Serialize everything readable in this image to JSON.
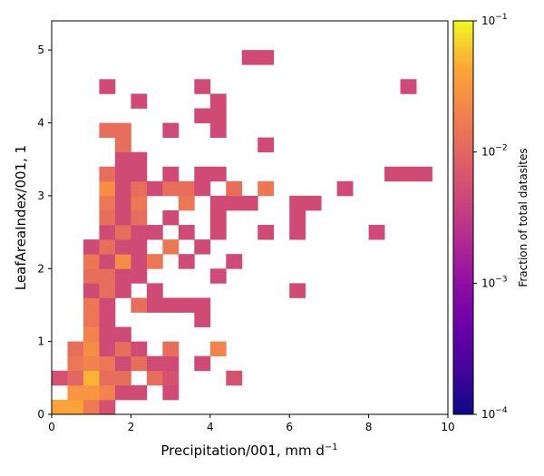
{
  "chart_data": {
    "type": "heatmap",
    "xlabel": "Precipitation/001,  mm d",
    "xlabel_sup": "−1",
    "ylabel": "LeafAreaIndex/001,  1",
    "xlim": [
      0,
      10
    ],
    "ylim": [
      0,
      5.4
    ],
    "bin_width_x": 0.4,
    "bin_height_y": 0.2,
    "xticks": [
      "0",
      "2",
      "4",
      "6",
      "8",
      "10"
    ],
    "yticks": [
      "0",
      "1",
      "2",
      "3",
      "4",
      "5"
    ],
    "colorbar": {
      "label": "Fraction of total datasites",
      "scale": "log",
      "range": [
        0.0001,
        0.1
      ],
      "colormap": "plasma",
      "ticks": [
        {
          "base": "10",
          "exp": "−1",
          "value": 0.1
        },
        {
          "base": "10",
          "exp": "−2",
          "value": 0.01
        },
        {
          "base": "10",
          "exp": "−3",
          "value": 0.001
        },
        {
          "base": "10",
          "exp": "−4",
          "value": 0.0001
        }
      ]
    },
    "cells": [
      {
        "x": 0.0,
        "y": 0.0,
        "v": 0.04
      },
      {
        "x": 0.4,
        "y": 0.0,
        "v": 0.04
      },
      {
        "x": 0.8,
        "y": 0.0,
        "v": 0.016
      },
      {
        "x": 1.2,
        "y": 0.0,
        "v": 0.006
      },
      {
        "x": 0.4,
        "y": 0.2,
        "v": 0.03
      },
      {
        "x": 0.8,
        "y": 0.2,
        "v": 0.03
      },
      {
        "x": 1.2,
        "y": 0.2,
        "v": 0.02
      },
      {
        "x": 1.6,
        "y": 0.2,
        "v": 0.005
      },
      {
        "x": 2.0,
        "y": 0.2,
        "v": 0.005
      },
      {
        "x": 2.8,
        "y": 0.2,
        "v": 0.005
      },
      {
        "x": 0.0,
        "y": 0.4,
        "v": 0.006
      },
      {
        "x": 0.4,
        "y": 0.4,
        "v": 0.01
      },
      {
        "x": 0.8,
        "y": 0.4,
        "v": 0.05
      },
      {
        "x": 1.2,
        "y": 0.4,
        "v": 0.012
      },
      {
        "x": 1.6,
        "y": 0.4,
        "v": 0.012
      },
      {
        "x": 2.4,
        "y": 0.4,
        "v": 0.012
      },
      {
        "x": 2.8,
        "y": 0.4,
        "v": 0.006
      },
      {
        "x": 4.4,
        "y": 0.4,
        "v": 0.006
      },
      {
        "x": 0.4,
        "y": 0.6,
        "v": 0.015
      },
      {
        "x": 0.8,
        "y": 0.6,
        "v": 0.02
      },
      {
        "x": 1.2,
        "y": 0.6,
        "v": 0.015
      },
      {
        "x": 1.6,
        "y": 0.6,
        "v": 0.005
      },
      {
        "x": 2.0,
        "y": 0.6,
        "v": 0.012
      },
      {
        "x": 2.4,
        "y": 0.6,
        "v": 0.005
      },
      {
        "x": 2.8,
        "y": 0.6,
        "v": 0.005
      },
      {
        "x": 3.6,
        "y": 0.6,
        "v": 0.005
      },
      {
        "x": 0.4,
        "y": 0.8,
        "v": 0.012
      },
      {
        "x": 0.8,
        "y": 0.8,
        "v": 0.025
      },
      {
        "x": 1.2,
        "y": 0.8,
        "v": 0.005
      },
      {
        "x": 1.6,
        "y": 0.8,
        "v": 0.012
      },
      {
        "x": 2.0,
        "y": 0.8,
        "v": 0.005
      },
      {
        "x": 2.8,
        "y": 0.8,
        "v": 0.012
      },
      {
        "x": 4.0,
        "y": 0.8,
        "v": 0.02
      },
      {
        "x": 0.8,
        "y": 1.0,
        "v": 0.02
      },
      {
        "x": 1.2,
        "y": 1.0,
        "v": 0.005
      },
      {
        "x": 1.6,
        "y": 1.0,
        "v": 0.005
      },
      {
        "x": 0.8,
        "y": 1.2,
        "v": 0.015
      },
      {
        "x": 1.2,
        "y": 1.2,
        "v": 0.005
      },
      {
        "x": 3.6,
        "y": 1.2,
        "v": 0.005
      },
      {
        "x": 0.8,
        "y": 1.4,
        "v": 0.015
      },
      {
        "x": 1.2,
        "y": 1.4,
        "v": 0.005
      },
      {
        "x": 2.0,
        "y": 1.4,
        "v": 0.012
      },
      {
        "x": 2.4,
        "y": 1.4,
        "v": 0.005
      },
      {
        "x": 2.8,
        "y": 1.4,
        "v": 0.005
      },
      {
        "x": 3.2,
        "y": 1.4,
        "v": 0.005
      },
      {
        "x": 3.6,
        "y": 1.4,
        "v": 0.005
      },
      {
        "x": 0.8,
        "y": 1.6,
        "v": 0.005
      },
      {
        "x": 1.2,
        "y": 1.6,
        "v": 0.012
      },
      {
        "x": 1.6,
        "y": 1.6,
        "v": 0.005
      },
      {
        "x": 2.4,
        "y": 1.6,
        "v": 0.005
      },
      {
        "x": 6.0,
        "y": 1.6,
        "v": 0.005
      },
      {
        "x": 0.8,
        "y": 1.8,
        "v": 0.012
      },
      {
        "x": 1.2,
        "y": 1.8,
        "v": 0.012
      },
      {
        "x": 1.6,
        "y": 1.8,
        "v": 0.005
      },
      {
        "x": 2.0,
        "y": 1.8,
        "v": 0.005
      },
      {
        "x": 4.0,
        "y": 1.8,
        "v": 0.005
      },
      {
        "x": 0.8,
        "y": 2.0,
        "v": 0.015
      },
      {
        "x": 1.2,
        "y": 2.0,
        "v": 0.005
      },
      {
        "x": 1.6,
        "y": 2.0,
        "v": 0.025
      },
      {
        "x": 2.0,
        "y": 2.0,
        "v": 0.005
      },
      {
        "x": 2.4,
        "y": 2.0,
        "v": 0.015
      },
      {
        "x": 3.2,
        "y": 2.0,
        "v": 0.005
      },
      {
        "x": 4.4,
        "y": 2.0,
        "v": 0.005
      },
      {
        "x": 0.8,
        "y": 2.2,
        "v": 0.005
      },
      {
        "x": 1.2,
        "y": 2.2,
        "v": 0.012
      },
      {
        "x": 1.6,
        "y": 2.2,
        "v": 0.005
      },
      {
        "x": 2.0,
        "y": 2.2,
        "v": 0.005
      },
      {
        "x": 2.8,
        "y": 2.2,
        "v": 0.015
      },
      {
        "x": 3.6,
        "y": 2.2,
        "v": 0.005
      },
      {
        "x": 1.2,
        "y": 2.4,
        "v": 0.005
      },
      {
        "x": 1.6,
        "y": 2.4,
        "v": 0.012
      },
      {
        "x": 2.0,
        "y": 2.4,
        "v": 0.005
      },
      {
        "x": 2.4,
        "y": 2.4,
        "v": 0.005
      },
      {
        "x": 3.2,
        "y": 2.4,
        "v": 0.005
      },
      {
        "x": 4.0,
        "y": 2.4,
        "v": 0.005
      },
      {
        "x": 5.2,
        "y": 2.4,
        "v": 0.005
      },
      {
        "x": 6.0,
        "y": 2.4,
        "v": 0.005
      },
      {
        "x": 8.0,
        "y": 2.4,
        "v": 0.005
      },
      {
        "x": 1.2,
        "y": 2.6,
        "v": 0.012
      },
      {
        "x": 1.6,
        "y": 2.6,
        "v": 0.005
      },
      {
        "x": 2.0,
        "y": 2.6,
        "v": 0.012
      },
      {
        "x": 2.8,
        "y": 2.6,
        "v": 0.005
      },
      {
        "x": 4.0,
        "y": 2.6,
        "v": 0.005
      },
      {
        "x": 6.0,
        "y": 2.6,
        "v": 0.005
      },
      {
        "x": 1.2,
        "y": 2.8,
        "v": 0.015
      },
      {
        "x": 1.6,
        "y": 2.8,
        "v": 0.005
      },
      {
        "x": 2.0,
        "y": 2.8,
        "v": 0.015
      },
      {
        "x": 3.2,
        "y": 2.8,
        "v": 0.015
      },
      {
        "x": 4.0,
        "y": 2.8,
        "v": 0.005
      },
      {
        "x": 4.4,
        "y": 2.8,
        "v": 0.005
      },
      {
        "x": 4.8,
        "y": 2.8,
        "v": 0.005
      },
      {
        "x": 6.0,
        "y": 2.8,
        "v": 0.005
      },
      {
        "x": 6.4,
        "y": 2.8,
        "v": 0.005
      },
      {
        "x": 1.2,
        "y": 3.0,
        "v": 0.025
      },
      {
        "x": 1.6,
        "y": 3.0,
        "v": 0.005
      },
      {
        "x": 2.0,
        "y": 3.0,
        "v": 0.012
      },
      {
        "x": 2.4,
        "y": 3.0,
        "v": 0.005
      },
      {
        "x": 2.8,
        "y": 3.0,
        "v": 0.012
      },
      {
        "x": 3.2,
        "y": 3.0,
        "v": 0.012
      },
      {
        "x": 3.6,
        "y": 3.0,
        "v": 0.005
      },
      {
        "x": 4.4,
        "y": 3.0,
        "v": 0.012
      },
      {
        "x": 5.2,
        "y": 3.0,
        "v": 0.015
      },
      {
        "x": 7.2,
        "y": 3.0,
        "v": 0.005
      },
      {
        "x": 1.2,
        "y": 3.2,
        "v": 0.012
      },
      {
        "x": 1.6,
        "y": 3.2,
        "v": 0.005
      },
      {
        "x": 2.0,
        "y": 3.2,
        "v": 0.005
      },
      {
        "x": 2.8,
        "y": 3.2,
        "v": 0.005
      },
      {
        "x": 3.6,
        "y": 3.2,
        "v": 0.005
      },
      {
        "x": 4.0,
        "y": 3.2,
        "v": 0.005
      },
      {
        "x": 8.4,
        "y": 3.2,
        "v": 0.005
      },
      {
        "x": 8.8,
        "y": 3.2,
        "v": 0.005
      },
      {
        "x": 9.2,
        "y": 3.2,
        "v": 0.005
      },
      {
        "x": 1.6,
        "y": 3.4,
        "v": 0.005
      },
      {
        "x": 2.0,
        "y": 3.4,
        "v": 0.005
      },
      {
        "x": 1.6,
        "y": 3.6,
        "v": 0.012
      },
      {
        "x": 5.2,
        "y": 3.6,
        "v": 0.005
      },
      {
        "x": 1.2,
        "y": 3.8,
        "v": 0.012
      },
      {
        "x": 1.6,
        "y": 3.8,
        "v": 0.012
      },
      {
        "x": 2.8,
        "y": 3.8,
        "v": 0.005
      },
      {
        "x": 4.0,
        "y": 3.8,
        "v": 0.005
      },
      {
        "x": 3.6,
        "y": 4.0,
        "v": 0.005
      },
      {
        "x": 4.0,
        "y": 4.0,
        "v": 0.005
      },
      {
        "x": 2.0,
        "y": 4.2,
        "v": 0.005
      },
      {
        "x": 4.0,
        "y": 4.2,
        "v": 0.005
      },
      {
        "x": 1.2,
        "y": 4.4,
        "v": 0.005
      },
      {
        "x": 3.6,
        "y": 4.4,
        "v": 0.005
      },
      {
        "x": 8.8,
        "y": 4.4,
        "v": 0.005
      },
      {
        "x": 4.8,
        "y": 4.8,
        "v": 0.005
      },
      {
        "x": 5.2,
        "y": 4.8,
        "v": 0.005
      }
    ]
  }
}
